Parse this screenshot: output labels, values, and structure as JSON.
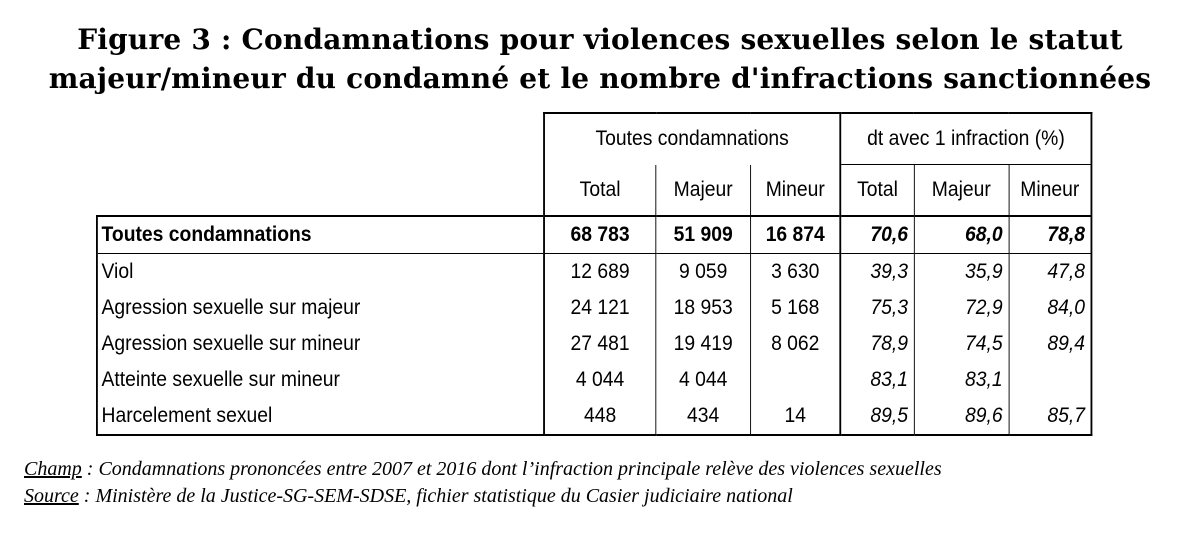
{
  "title": {
    "line1": "Figure 3 : Condamnations pour violences sexuelles selon le statut",
    "line2": "majeur/mineur du condamné et le nombre d'infractions sanctionnées"
  },
  "table": {
    "group_headers": [
      "Toutes condamnations",
      "dt avec 1 infraction (%)"
    ],
    "sub_headers": [
      "Total",
      "Majeur",
      "Mineur",
      "Total",
      "Majeur",
      "Mineur"
    ],
    "rows": [
      {
        "label": "Toutes condamnations",
        "values": [
          "68 783",
          "51 909",
          "16 874",
          "70,6",
          "68,0",
          "78,8"
        ]
      },
      {
        "label": "Viol",
        "values": [
          "12 689",
          "9 059",
          "3 630",
          "39,3",
          "35,9",
          "47,8"
        ]
      },
      {
        "label": "Agression sexuelle sur majeur",
        "values": [
          "24 121",
          "18 953",
          "5 168",
          "75,3",
          "72,9",
          "84,0"
        ]
      },
      {
        "label": "Agression sexuelle sur mineur",
        "values": [
          "27 481",
          "19 419",
          "8 062",
          "78,9",
          "74,5",
          "89,4"
        ]
      },
      {
        "label": "Atteinte sexuelle sur mineur",
        "values": [
          "4 044",
          "4 044",
          "",
          "83,1",
          "83,1",
          ""
        ]
      },
      {
        "label": "Harcelement sexuel",
        "values": [
          "448",
          "434",
          "14",
          "89,5",
          "89,6",
          "85,7"
        ]
      }
    ]
  },
  "notes": {
    "champ_key": "Champ",
    "champ_text": " : Condamnations prononcées entre 2007 et 2016 dont l’infraction principale relève des violences sexuelles",
    "source_key": "Source",
    "source_text": " : Ministère de la Justice-SG-SEM-SDSE, fichier statistique du Casier judiciaire national"
  }
}
